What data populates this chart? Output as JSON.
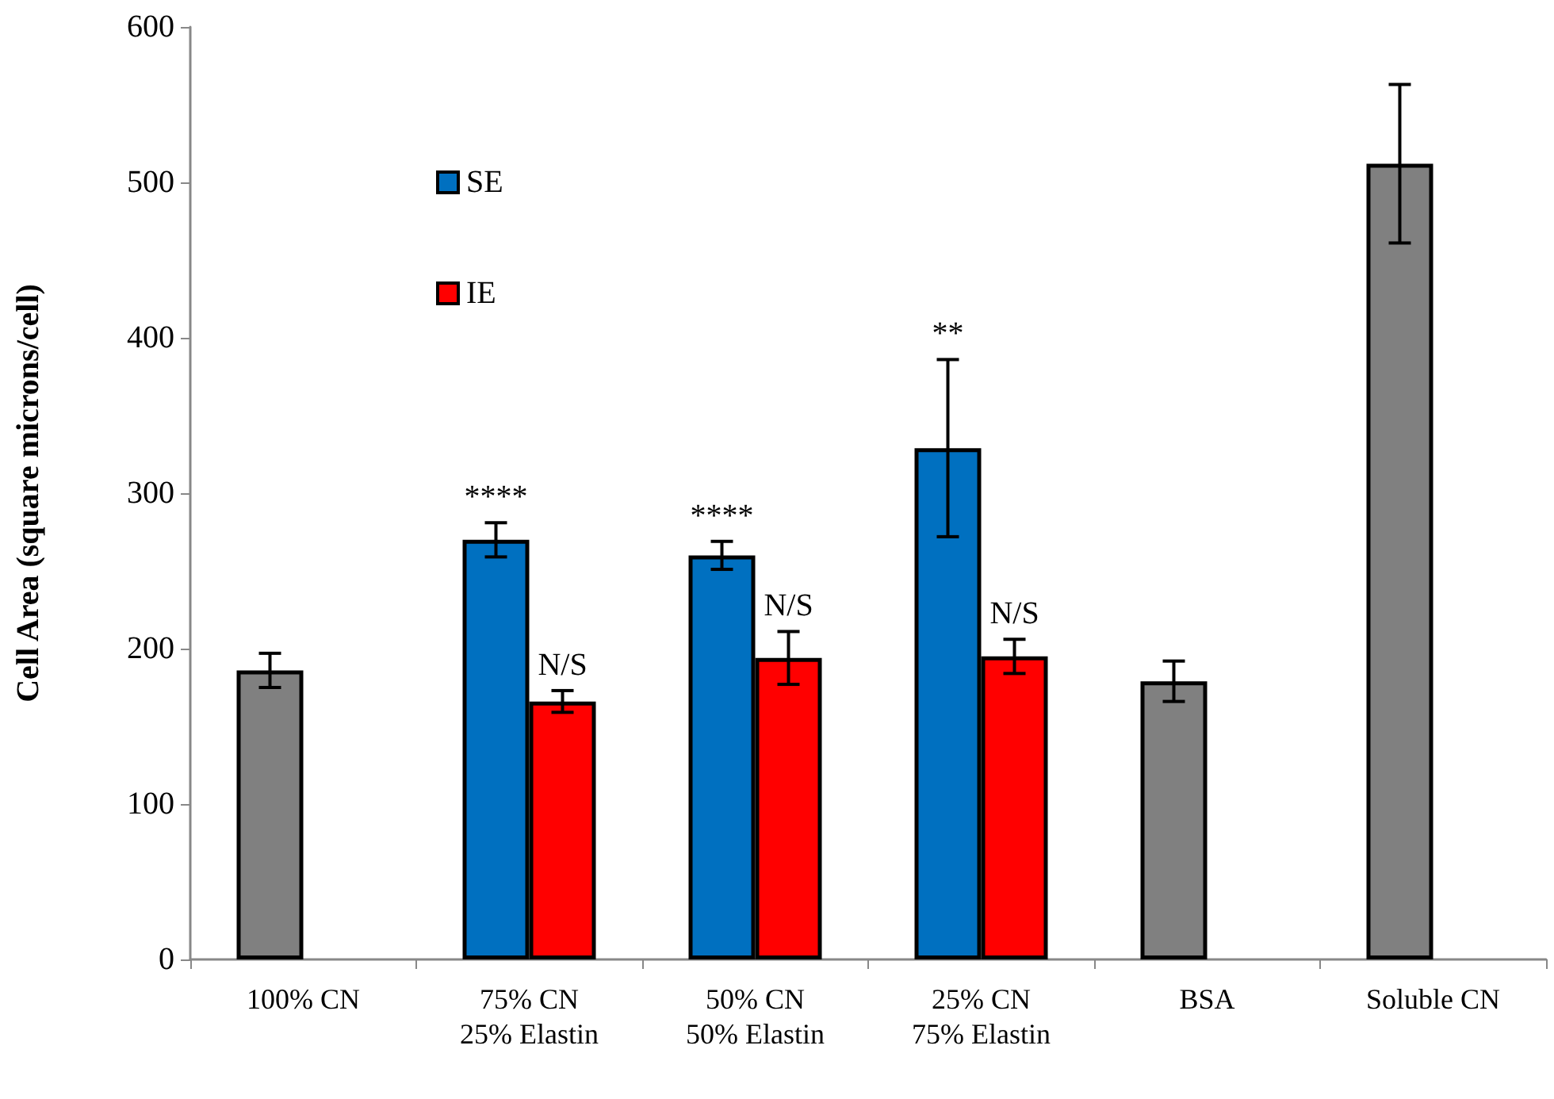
{
  "chart_data": {
    "type": "bar",
    "ylabel": "Cell Area (square microns/cell)",
    "categories": [
      "100% CN",
      "75% CN\n25% Elastin",
      "50% CN\n50% Elastin",
      "25% CN\n75% Elastin",
      "BSA",
      "Soluble CN"
    ],
    "series": [
      {
        "color": "#808080",
        "values": [
          186,
          null,
          null,
          null,
          179,
          512
        ],
        "errors": [
          11,
          null,
          null,
          null,
          13,
          51
        ]
      },
      {
        "name": "SE",
        "color": "#0070c0",
        "values": [
          null,
          270,
          260,
          329,
          null,
          null
        ],
        "errors": [
          null,
          11,
          9,
          57,
          null,
          null
        ]
      },
      {
        "name": "IE",
        "color": "#ff0000",
        "values": [
          null,
          166,
          194,
          195,
          null,
          null
        ],
        "errors": [
          null,
          7,
          17,
          11,
          null,
          null
        ]
      }
    ],
    "ylim": [
      0,
      600
    ],
    "yticks": [
      0,
      100,
      200,
      300,
      400,
      500,
      600
    ],
    "grid": false,
    "legend": "top left",
    "annotations": [
      {
        "text": "****",
        "x": "75% CN\n25% Elastin",
        "y": 270
      },
      {
        "text": "N/S",
        "x": "75% CN\n25% Elastin",
        "y": 173
      },
      {
        "text": "****",
        "x": "50% CN\n50% Elastin",
        "y": 260
      },
      {
        "text": "N/S",
        "x": "50% CN\n50% Elastin",
        "y": 211
      },
      "**",
      {
        "text": "N/S",
        "x": "25% CN\n75% Elastin",
        "y": 206
      }
    ]
  }
}
